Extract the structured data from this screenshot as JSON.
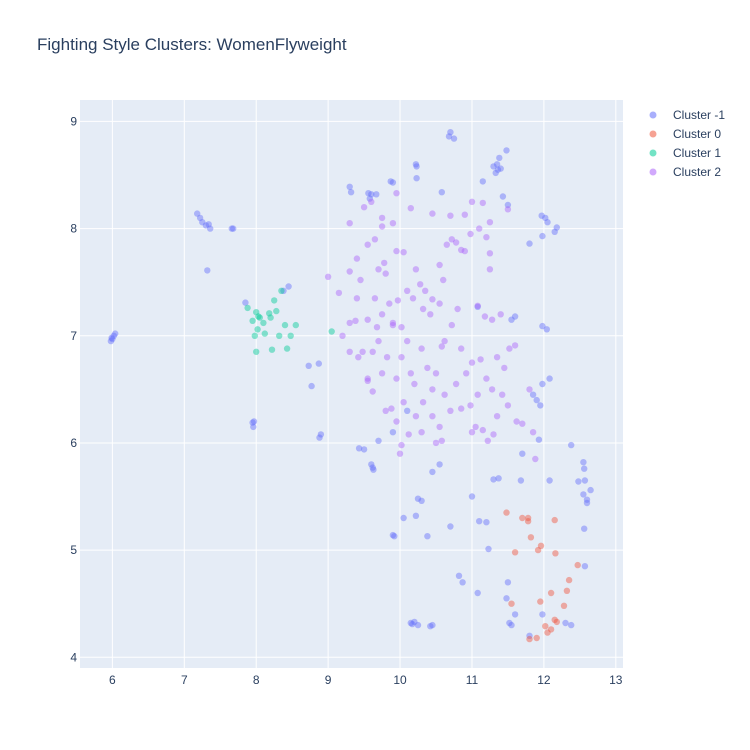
{
  "chart_data": {
    "type": "scatter",
    "title": "Fighting Style Clusters: WomenFlyweight",
    "xlabel": "",
    "ylabel": "",
    "xlim": [
      5.55,
      13.1
    ],
    "ylim": [
      3.9,
      9.2
    ],
    "x_ticks": [
      6,
      7,
      8,
      9,
      10,
      11,
      12,
      13
    ],
    "y_ticks": [
      4,
      5,
      6,
      7,
      8,
      9
    ],
    "grid": true,
    "legend_position": "top-right",
    "colors": {
      "plot_bg": "#e5ecf6",
      "grid": "#ffffff",
      "text": "#2a3f5f"
    },
    "series": [
      {
        "name": "Cluster -1",
        "color": "#636efa",
        "points": [
          [
            6.0,
            6.97
          ],
          [
            5.98,
            6.95
          ],
          [
            6.02,
            7.0
          ],
          [
            6.04,
            7.02
          ],
          [
            5.99,
            6.98
          ],
          [
            7.18,
            8.14
          ],
          [
            7.22,
            8.1
          ],
          [
            7.25,
            8.06
          ],
          [
            7.3,
            8.03
          ],
          [
            7.36,
            8.0
          ],
          [
            7.34,
            8.04
          ],
          [
            7.68,
            8.0
          ],
          [
            7.66,
            8.0
          ],
          [
            7.32,
            7.61
          ],
          [
            7.85,
            7.31
          ],
          [
            7.95,
            6.19
          ],
          [
            7.96,
            6.15
          ],
          [
            7.97,
            6.2
          ],
          [
            8.45,
            7.46
          ],
          [
            8.38,
            7.42
          ],
          [
            8.88,
            6.05
          ],
          [
            8.9,
            6.08
          ],
          [
            8.73,
            6.72
          ],
          [
            8.77,
            6.53
          ],
          [
            8.87,
            6.74
          ],
          [
            9.3,
            8.39
          ],
          [
            9.32,
            8.34
          ],
          [
            9.56,
            8.33
          ],
          [
            9.6,
            8.32
          ],
          [
            9.58,
            8.28
          ],
          [
            9.67,
            8.32
          ],
          [
            9.87,
            8.44
          ],
          [
            9.9,
            8.43
          ],
          [
            10.22,
            8.6
          ],
          [
            10.23,
            8.58
          ],
          [
            10.23,
            8.47
          ],
          [
            10.58,
            8.34
          ],
          [
            10.68,
            8.86
          ],
          [
            10.7,
            8.9
          ],
          [
            10.75,
            8.84
          ],
          [
            11.48,
            8.73
          ],
          [
            11.38,
            8.66
          ],
          [
            11.35,
            8.6
          ],
          [
            11.3,
            8.58
          ],
          [
            11.36,
            8.55
          ],
          [
            11.33,
            8.52
          ],
          [
            11.4,
            8.56
          ],
          [
            11.15,
            8.44
          ],
          [
            11.43,
            8.3
          ],
          [
            11.5,
            8.22
          ],
          [
            11.8,
            7.86
          ],
          [
            11.97,
            8.12
          ],
          [
            12.02,
            8.1
          ],
          [
            12.05,
            8.06
          ],
          [
            11.98,
            7.93
          ],
          [
            12.15,
            7.97
          ],
          [
            12.18,
            8.01
          ],
          [
            11.08,
            7.27
          ],
          [
            11.55,
            7.15
          ],
          [
            11.6,
            7.18
          ],
          [
            11.98,
            7.09
          ],
          [
            12.04,
            7.06
          ],
          [
            9.43,
            5.95
          ],
          [
            9.5,
            5.94
          ],
          [
            9.6,
            5.8
          ],
          [
            9.62,
            5.77
          ],
          [
            9.63,
            5.75
          ],
          [
            9.7,
            6.02
          ],
          [
            9.9,
            6.1
          ],
          [
            10.1,
            6.3
          ],
          [
            10.55,
            5.8
          ],
          [
            10.45,
            5.73
          ],
          [
            11.0,
            5.5
          ],
          [
            11.1,
            5.27
          ],
          [
            11.2,
            5.26
          ],
          [
            11.3,
            5.66
          ],
          [
            11.37,
            5.67
          ],
          [
            11.68,
            5.65
          ],
          [
            11.23,
            5.01
          ],
          [
            9.9,
            5.14
          ],
          [
            9.92,
            5.13
          ],
          [
            10.05,
            5.3
          ],
          [
            10.22,
            5.32
          ],
          [
            10.25,
            5.48
          ],
          [
            10.3,
            5.46
          ],
          [
            10.38,
            5.13
          ],
          [
            10.7,
            5.22
          ],
          [
            10.15,
            4.32
          ],
          [
            10.17,
            4.31
          ],
          [
            10.2,
            4.33
          ],
          [
            10.25,
            4.3
          ],
          [
            10.42,
            4.29
          ],
          [
            10.45,
            4.3
          ],
          [
            10.82,
            4.76
          ],
          [
            10.87,
            4.7
          ],
          [
            11.08,
            4.6
          ],
          [
            11.48,
            4.55
          ],
          [
            11.5,
            4.7
          ],
          [
            11.52,
            4.32
          ],
          [
            11.55,
            4.3
          ],
          [
            11.6,
            4.4
          ],
          [
            11.8,
            4.2
          ],
          [
            11.9,
            6.4
          ],
          [
            11.95,
            6.35
          ],
          [
            11.98,
            6.55
          ],
          [
            12.08,
            6.6
          ],
          [
            11.85,
            6.45
          ],
          [
            11.93,
            6.03
          ],
          [
            11.7,
            5.9
          ],
          [
            11.98,
            4.4
          ],
          [
            12.3,
            4.32
          ],
          [
            12.38,
            4.3
          ],
          [
            12.38,
            5.98
          ],
          [
            12.55,
            5.82
          ],
          [
            12.56,
            5.76
          ],
          [
            12.48,
            5.64
          ],
          [
            12.55,
            5.52
          ],
          [
            12.6,
            5.47
          ],
          [
            12.6,
            5.44
          ],
          [
            12.65,
            5.56
          ],
          [
            12.57,
            5.65
          ],
          [
            12.56,
            5.2
          ],
          [
            12.57,
            4.85
          ],
          [
            12.08,
            5.65
          ]
        ]
      },
      {
        "name": "Cluster 0",
        "color": "#ef553b",
        "points": [
          [
            11.48,
            5.35
          ],
          [
            11.6,
            4.98
          ],
          [
            11.55,
            4.5
          ],
          [
            11.7,
            5.3
          ],
          [
            11.78,
            5.3
          ],
          [
            11.78,
            5.27
          ],
          [
            11.82,
            5.12
          ],
          [
            11.8,
            4.17
          ],
          [
            11.9,
            4.18
          ],
          [
            11.92,
            5.0
          ],
          [
            11.96,
            5.04
          ],
          [
            11.95,
            4.52
          ],
          [
            12.15,
            5.28
          ],
          [
            12.16,
            4.97
          ],
          [
            12.02,
            4.29
          ],
          [
            12.05,
            4.23
          ],
          [
            12.1,
            4.26
          ],
          [
            12.15,
            4.35
          ],
          [
            12.18,
            4.33
          ],
          [
            12.28,
            4.48
          ],
          [
            12.32,
            4.62
          ],
          [
            12.35,
            4.72
          ],
          [
            12.1,
            4.6
          ],
          [
            12.47,
            4.86
          ]
        ]
      },
      {
        "name": "Cluster 1",
        "color": "#00cc96",
        "points": [
          [
            7.88,
            7.26
          ],
          [
            7.95,
            7.14
          ],
          [
            7.98,
            7.0
          ],
          [
            8.02,
            7.06
          ],
          [
            8.0,
            7.22
          ],
          [
            8.03,
            7.18
          ],
          [
            8.05,
            7.17
          ],
          [
            8.1,
            7.12
          ],
          [
            8.0,
            6.85
          ],
          [
            8.12,
            7.02
          ],
          [
            8.18,
            7.21
          ],
          [
            8.2,
            7.17
          ],
          [
            8.25,
            7.33
          ],
          [
            8.28,
            7.23
          ],
          [
            8.22,
            6.87
          ],
          [
            8.32,
            7.0
          ],
          [
            8.35,
            7.42
          ],
          [
            8.4,
            7.1
          ],
          [
            8.43,
            6.88
          ],
          [
            8.48,
            7.0
          ],
          [
            8.55,
            7.1
          ],
          [
            9.05,
            7.04
          ]
        ]
      },
      {
        "name": "Cluster 2",
        "color": "#ab63fa",
        "points": [
          [
            9.3,
            8.05
          ],
          [
            9.5,
            8.2
          ],
          [
            9.6,
            8.25
          ],
          [
            9.75,
            8.1
          ],
          [
            9.95,
            8.33
          ],
          [
            10.15,
            8.19
          ],
          [
            10.45,
            8.14
          ],
          [
            10.7,
            8.12
          ],
          [
            10.9,
            8.13
          ],
          [
            11.0,
            8.25
          ],
          [
            11.15,
            8.24
          ],
          [
            11.25,
            8.06
          ],
          [
            11.5,
            8.18
          ],
          [
            9.0,
            7.55
          ],
          [
            9.15,
            7.4
          ],
          [
            9.3,
            7.6
          ],
          [
            9.4,
            7.72
          ],
          [
            9.45,
            7.52
          ],
          [
            9.55,
            7.85
          ],
          [
            9.65,
            7.9
          ],
          [
            9.7,
            7.62
          ],
          [
            9.78,
            7.68
          ],
          [
            9.8,
            7.58
          ],
          [
            9.75,
            8.02
          ],
          [
            9.9,
            8.05
          ],
          [
            9.95,
            7.79
          ],
          [
            10.05,
            7.78
          ],
          [
            9.55,
            7.15
          ],
          [
            9.65,
            7.35
          ],
          [
            9.75,
            7.2
          ],
          [
            9.85,
            7.3
          ],
          [
            9.9,
            7.12
          ],
          [
            9.97,
            7.33
          ],
          [
            10.02,
            7.08
          ],
          [
            10.1,
            7.42
          ],
          [
            10.18,
            7.35
          ],
          [
            10.22,
            7.62
          ],
          [
            10.28,
            7.48
          ],
          [
            10.35,
            7.42
          ],
          [
            10.45,
            7.34
          ],
          [
            10.55,
            7.66
          ],
          [
            10.6,
            7.52
          ],
          [
            10.65,
            7.85
          ],
          [
            10.72,
            7.9
          ],
          [
            10.78,
            7.87
          ],
          [
            10.85,
            7.8
          ],
          [
            10.9,
            7.79
          ],
          [
            10.98,
            7.95
          ],
          [
            11.1,
            8.0
          ],
          [
            11.2,
            7.92
          ],
          [
            11.25,
            7.77
          ],
          [
            11.25,
            7.62
          ],
          [
            9.2,
            7.0
          ],
          [
            9.3,
            6.85
          ],
          [
            9.38,
            7.14
          ],
          [
            9.42,
            6.8
          ],
          [
            9.48,
            6.85
          ],
          [
            9.55,
            6.6
          ],
          [
            9.62,
            6.85
          ],
          [
            9.7,
            6.95
          ],
          [
            9.75,
            6.65
          ],
          [
            9.82,
            6.8
          ],
          [
            9.9,
            7.1
          ],
          [
            9.95,
            6.6
          ],
          [
            10.02,
            6.8
          ],
          [
            10.1,
            6.95
          ],
          [
            10.15,
            6.65
          ],
          [
            10.2,
            6.55
          ],
          [
            10.3,
            6.88
          ],
          [
            10.38,
            6.7
          ],
          [
            10.45,
            6.5
          ],
          [
            10.5,
            6.65
          ],
          [
            10.58,
            6.9
          ],
          [
            10.62,
            6.95
          ],
          [
            10.72,
            7.1
          ],
          [
            10.78,
            6.55
          ],
          [
            10.85,
            6.88
          ],
          [
            10.92,
            6.65
          ],
          [
            11.0,
            6.75
          ],
          [
            11.08,
            6.45
          ],
          [
            11.12,
            6.78
          ],
          [
            11.2,
            6.6
          ],
          [
            11.28,
            6.5
          ],
          [
            11.35,
            6.8
          ],
          [
            11.45,
            6.7
          ],
          [
            11.52,
            6.88
          ],
          [
            11.6,
            6.91
          ],
          [
            9.8,
            6.3
          ],
          [
            9.88,
            6.32
          ],
          [
            9.95,
            6.2
          ],
          [
            10.05,
            6.38
          ],
          [
            10.12,
            6.08
          ],
          [
            10.22,
            6.25
          ],
          [
            10.32,
            6.38
          ],
          [
            10.45,
            6.25
          ],
          [
            10.55,
            6.15
          ],
          [
            10.62,
            6.45
          ],
          [
            10.7,
            6.3
          ],
          [
            10.85,
            6.32
          ],
          [
            10.98,
            6.35
          ],
          [
            11.05,
            6.15
          ],
          [
            11.15,
            6.12
          ],
          [
            11.22,
            6.02
          ],
          [
            11.3,
            6.08
          ],
          [
            11.35,
            6.25
          ],
          [
            11.42,
            6.45
          ],
          [
            11.5,
            6.35
          ],
          [
            11.62,
            6.2
          ],
          [
            11.7,
            6.18
          ],
          [
            11.8,
            6.5
          ],
          [
            11.85,
            6.1
          ],
          [
            11.88,
            5.85
          ],
          [
            9.55,
            6.58
          ],
          [
            9.62,
            6.48
          ],
          [
            10.0,
            5.9
          ],
          [
            10.02,
            5.98
          ],
          [
            10.3,
            6.1
          ],
          [
            10.5,
            6.0
          ],
          [
            10.58,
            6.02
          ],
          [
            11.0,
            6.1
          ],
          [
            9.3,
            7.12
          ],
          [
            9.4,
            7.35
          ],
          [
            9.68,
            7.08
          ],
          [
            10.32,
            7.25
          ],
          [
            10.42,
            7.2
          ],
          [
            10.55,
            7.3
          ],
          [
            10.8,
            7.25
          ],
          [
            11.08,
            7.28
          ],
          [
            11.18,
            7.18
          ],
          [
            11.28,
            7.15
          ],
          [
            11.4,
            7.2
          ]
        ]
      }
    ]
  }
}
